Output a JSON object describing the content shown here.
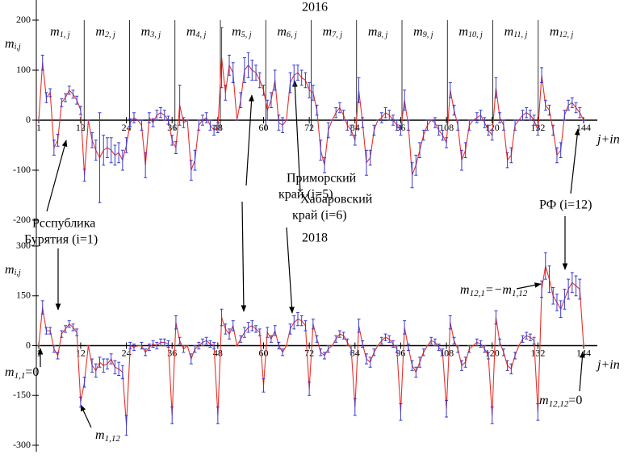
{
  "chart_data": [
    {
      "type": "line",
      "title": "2016",
      "ylabel": {
        "base": "m",
        "sub": "i,j"
      },
      "xlabel": "j+in",
      "month_labels": [
        {
          "base": "m",
          "sub": "1, j"
        },
        {
          "base": "m",
          "sub": "2, j"
        },
        {
          "base": "m",
          "sub": "3, j"
        },
        {
          "base": "m",
          "sub": "4, j"
        },
        {
          "base": "m",
          "sub": "5, j"
        },
        {
          "base": "m",
          "sub": "6, j"
        },
        {
          "base": "m",
          "sub": "7, j"
        },
        {
          "base": "m",
          "sub": "8, j"
        },
        {
          "base": "m",
          "sub": "9, j"
        },
        {
          "base": "m",
          "sub": "10, j"
        },
        {
          "base": "m",
          "sub": "11, j"
        },
        {
          "base": "m",
          "sub": "12, j"
        }
      ],
      "xlim": [
        1,
        144
      ],
      "xticks": [
        1,
        12,
        24,
        36,
        48,
        60,
        72,
        84,
        96,
        108,
        120,
        132,
        144
      ],
      "ylim": [
        -200,
        200
      ],
      "yticks": [
        -200,
        -100,
        0,
        100,
        200
      ],
      "color": "#e8302a",
      "error_color": "#3a3ad0",
      "x": [
        1,
        2,
        3,
        4,
        5,
        6,
        7,
        8,
        9,
        10,
        11,
        12,
        13,
        14,
        15,
        16,
        17,
        18,
        19,
        20,
        21,
        22,
        23,
        24,
        25,
        26,
        27,
        28,
        29,
        30,
        31,
        32,
        33,
        34,
        35,
        36,
        37,
        38,
        39,
        40,
        41,
        42,
        43,
        44,
        45,
        46,
        47,
        48,
        49,
        50,
        51,
        52,
        53,
        54,
        55,
        56,
        57,
        58,
        59,
        60,
        61,
        62,
        63,
        64,
        65,
        66,
        67,
        68,
        69,
        70,
        71,
        72,
        73,
        74,
        75,
        76,
        77,
        78,
        79,
        80,
        81,
        82,
        83,
        84,
        85,
        86,
        87,
        88,
        89,
        90,
        91,
        92,
        93,
        94,
        95,
        96,
        97,
        98,
        99,
        100,
        101,
        102,
        103,
        104,
        105,
        106,
        107,
        108,
        109,
        110,
        111,
        112,
        113,
        114,
        115,
        116,
        117,
        118,
        119,
        120,
        121,
        122,
        123,
        124,
        125,
        126,
        127,
        128,
        129,
        130,
        131,
        132,
        133,
        134,
        135,
        136,
        137,
        138,
        139,
        140,
        141,
        142,
        143,
        144
      ],
      "values": [
        0,
        115,
        45,
        55,
        -55,
        -40,
        35,
        45,
        60,
        52,
        40,
        20,
        -110,
        0,
        -40,
        -60,
        -75,
        -60,
        -55,
        -60,
        -70,
        -65,
        -80,
        -50,
        -5,
        5,
        0,
        -10,
        -90,
        5,
        -5,
        10,
        15,
        10,
        0,
        -40,
        -55,
        30,
        -5,
        0,
        -100,
        -80,
        -10,
        0,
        5,
        -10,
        -20,
        -15,
        125,
        55,
        110,
        95,
        0,
        40,
        100,
        110,
        100,
        95,
        80,
        60,
        20,
        40,
        80,
        -5,
        -10,
        0,
        75,
        90,
        95,
        85,
        80,
        60,
        55,
        20,
        -60,
        -90,
        -20,
        0,
        15,
        25,
        10,
        -10,
        -20,
        -40,
        60,
        -5,
        -85,
        -75,
        -20,
        0,
        5,
        15,
        10,
        0,
        -10,
        -20,
        40,
        -10,
        -110,
        -90,
        -60,
        -30,
        -10,
        0,
        -5,
        -20,
        -30,
        -45,
        60,
        20,
        -10,
        -80,
        -60,
        -10,
        0,
        5,
        10,
        -5,
        -20,
        -30,
        65,
        5,
        -10,
        -80,
        -70,
        -10,
        0,
        10,
        15,
        10,
        0,
        -20,
        90,
        30,
        20,
        -20,
        -70,
        -60,
        10,
        30,
        35,
        25,
        15,
        0
      ],
      "errors": [
        0,
        15,
        10,
        8,
        15,
        12,
        8,
        8,
        8,
        8,
        8,
        8,
        12,
        0,
        15,
        20,
        90,
        30,
        20,
        25,
        20,
        20,
        20,
        15,
        8,
        10,
        0,
        10,
        25,
        10,
        8,
        10,
        10,
        10,
        8,
        10,
        12,
        40,
        10,
        0,
        20,
        20,
        10,
        10,
        10,
        10,
        10,
        10,
        60,
        15,
        20,
        20,
        0,
        15,
        25,
        25,
        20,
        15,
        15,
        10,
        20,
        15,
        20,
        15,
        15,
        0,
        20,
        20,
        15,
        15,
        15,
        15,
        15,
        10,
        20,
        15,
        15,
        0,
        10,
        10,
        10,
        10,
        10,
        10,
        25,
        10,
        25,
        15,
        10,
        0,
        10,
        10,
        10,
        10,
        10,
        10,
        20,
        10,
        25,
        20,
        15,
        10,
        10,
        0,
        10,
        10,
        10,
        10,
        15,
        10,
        10,
        20,
        15,
        10,
        0,
        10,
        10,
        10,
        10,
        10,
        20,
        10,
        10,
        15,
        15,
        10,
        0,
        10,
        10,
        10,
        10,
        10,
        15,
        10,
        10,
        10,
        15,
        15,
        10,
        10,
        10,
        10,
        10,
        0
      ]
    },
    {
      "type": "line",
      "title": "2018",
      "ylabel": {
        "base": "m",
        "sub": "i,j"
      },
      "xlabel": "j+in",
      "xlim": [
        1,
        144
      ],
      "xticks": [
        1,
        12,
        24,
        36,
        48,
        60,
        72,
        84,
        96,
        108,
        120,
        132,
        144
      ],
      "ylim": [
        -300,
        300
      ],
      "yticks": [
        -300,
        -150,
        0,
        150,
        300
      ],
      "color": "#e8302a",
      "error_color": "#3a3ad0",
      "x": [
        1,
        2,
        3,
        4,
        5,
        6,
        7,
        8,
        9,
        10,
        11,
        12,
        13,
        14,
        15,
        16,
        17,
        18,
        19,
        20,
        21,
        22,
        23,
        24,
        25,
        26,
        27,
        28,
        29,
        30,
        31,
        32,
        33,
        34,
        35,
        36,
        37,
        38,
        39,
        40,
        41,
        42,
        43,
        44,
        45,
        46,
        47,
        48,
        49,
        50,
        51,
        52,
        53,
        54,
        55,
        56,
        57,
        58,
        59,
        60,
        61,
        62,
        63,
        64,
        65,
        66,
        67,
        68,
        69,
        70,
        71,
        72,
        73,
        74,
        75,
        76,
        77,
        78,
        79,
        80,
        81,
        82,
        83,
        84,
        85,
        86,
        87,
        88,
        89,
        90,
        91,
        92,
        93,
        94,
        95,
        96,
        97,
        98,
        99,
        100,
        101,
        102,
        103,
        104,
        105,
        106,
        107,
        108,
        109,
        110,
        111,
        112,
        113,
        114,
        115,
        116,
        117,
        118,
        119,
        120,
        121,
        122,
        123,
        124,
        125,
        126,
        127,
        128,
        129,
        130,
        131,
        132,
        133,
        134,
        135,
        136,
        137,
        138,
        139,
        140,
        141,
        142,
        143,
        144
      ],
      "values": [
        0,
        115,
        45,
        45,
        -10,
        -30,
        35,
        50,
        65,
        55,
        40,
        -170,
        -110,
        0,
        -60,
        -75,
        -50,
        -60,
        -55,
        -40,
        -65,
        -70,
        -80,
        -240,
        0,
        -5,
        0,
        0,
        -20,
        -5,
        5,
        0,
        10,
        10,
        5,
        -210,
        70,
        15,
        -10,
        0,
        -40,
        -10,
        0,
        10,
        15,
        5,
        0,
        -210,
        85,
        50,
        35,
        60,
        0,
        20,
        40,
        55,
        60,
        50,
        40,
        -120,
        40,
        20,
        45,
        0,
        -20,
        0,
        50,
        70,
        80,
        75,
        60,
        -130,
        65,
        20,
        -20,
        -30,
        -10,
        0,
        20,
        35,
        30,
        10,
        -10,
        -185,
        60,
        5,
        -40,
        -50,
        -20,
        0,
        15,
        25,
        20,
        5,
        -10,
        -200,
        55,
        -5,
        -60,
        -80,
        -50,
        -20,
        0,
        15,
        10,
        -5,
        -20,
        -190,
        70,
        15,
        -10,
        -60,
        -50,
        -10,
        0,
        10,
        5,
        -10,
        -30,
        -210,
        85,
        10,
        -20,
        -60,
        -70,
        -30,
        0,
        20,
        30,
        25,
        15,
        -200,
        170,
        240,
        200,
        150,
        130,
        110,
        140,
        170,
        190,
        180,
        170,
        0
      ],
      "errors": [
        0,
        20,
        10,
        10,
        10,
        10,
        10,
        10,
        10,
        10,
        10,
        15,
        15,
        0,
        20,
        20,
        15,
        20,
        15,
        15,
        20,
        20,
        20,
        30,
        10,
        10,
        0,
        10,
        10,
        10,
        10,
        10,
        10,
        10,
        10,
        25,
        20,
        10,
        10,
        0,
        15,
        10,
        10,
        10,
        10,
        10,
        10,
        25,
        25,
        15,
        15,
        15,
        0,
        10,
        15,
        15,
        15,
        10,
        10,
        20,
        15,
        10,
        15,
        10,
        10,
        0,
        15,
        20,
        20,
        15,
        15,
        20,
        15,
        10,
        10,
        10,
        10,
        0,
        10,
        10,
        10,
        10,
        10,
        25,
        20,
        10,
        15,
        15,
        10,
        0,
        10,
        10,
        10,
        10,
        10,
        25,
        20,
        10,
        15,
        15,
        15,
        10,
        0,
        10,
        10,
        10,
        10,
        25,
        20,
        10,
        10,
        15,
        15,
        10,
        0,
        10,
        10,
        10,
        10,
        25,
        20,
        10,
        10,
        15,
        15,
        10,
        0,
        10,
        10,
        10,
        10,
        25,
        25,
        40,
        40,
        25,
        25,
        25,
        30,
        30,
        30,
        30,
        30,
        0
      ]
    }
  ],
  "annotations": [
    {
      "lines": [
        "Рсспублика",
        "Бурятия (i=1)"
      ]
    },
    {
      "lines": [
        "Приморский",
        "край (i=5)"
      ]
    },
    {
      "lines": [
        "Хабаровский",
        "край (i=6)"
      ]
    },
    {
      "lines": [
        "РФ (i=12)"
      ]
    },
    {
      "parts": [
        {
          "t": "m"
        },
        {
          "t": "12,1",
          "sub": true
        },
        {
          "t": "=−m"
        },
        {
          "t": "1,12",
          "sub": true
        }
      ]
    },
    {
      "parts": [
        {
          "t": "m"
        },
        {
          "t": "1,1",
          "sub": true
        },
        {
          "t": "=0"
        }
      ]
    },
    {
      "parts": [
        {
          "t": "m"
        },
        {
          "t": "1,12",
          "sub": true
        }
      ]
    },
    {
      "parts": [
        {
          "t": "m"
        },
        {
          "t": "12,12",
          "sub": true
        },
        {
          "t": "=0"
        }
      ]
    }
  ]
}
